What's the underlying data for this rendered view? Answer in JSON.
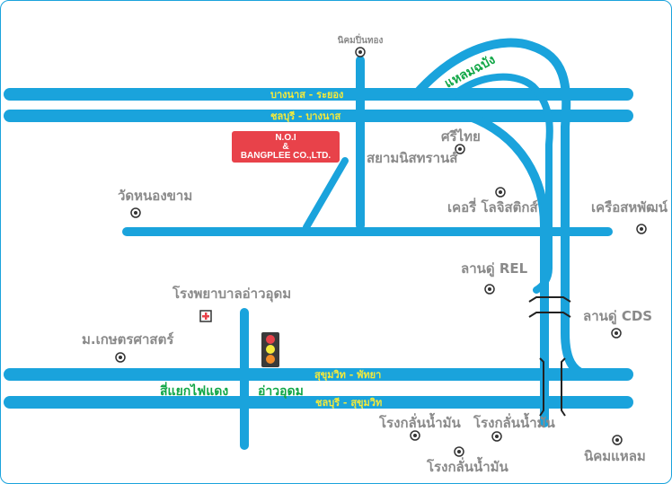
{
  "colors": {
    "road": "#1aa3dc",
    "road_label": "#f5ea3a",
    "place_label": "#8a8a8a",
    "green_label": "#10a646",
    "company_box": "#e8424a"
  },
  "roads": {
    "bangna_rayong": "บางนาส - ระยอง",
    "chonburi_bangna": "ชลบุรี - บางนาส",
    "sukhumvit_pattaya": "สุขุมวิท - พัทยา",
    "chonburi_sukhumvit": "ชลบุรี - สุขุมวิท"
  },
  "company": {
    "line1": "N.O.I",
    "line2": "&",
    "line3": "BANGPLEE CO.,LTD."
  },
  "places": {
    "nikhom_bonthong": "นิคมปิ่นทอง",
    "laem_chabang": "แหลมฉบัง",
    "srithai": "ศรีไทย",
    "siam_nistran": "สยามนิสทรานส์",
    "wat_nong_kham": "วัดหนองขาม",
    "kerry_logistics": "เคอรี่ โลจิสติกส์",
    "khrueasahaphat": "เครือสหพัฒน์",
    "landu_rel": "ลานดู่ REL",
    "hospital_ao_udom": "โรงพยาบาลอ่าวอุดม",
    "landu_cds": "ลานดู่ CDS",
    "mor_kasetsart": "ม.เกษตรศาสตร์",
    "si_yaek_fai_daeng": "สี่แยกไฟแดง",
    "ao_udom": "อ่าวอุดม",
    "refinery_1": "โรงกลั่นน้ำมัน",
    "refinery_2": "โรงกลั่นน้ำมัน",
    "refinery_3": "โรงกลั่นน้ำมัน",
    "nikhom_laem": "นิคมแหลม"
  },
  "icons": {
    "landmark": "landmark-dot-icon",
    "hospital": "hospital-cross-icon",
    "traffic_light": "traffic-light-icon",
    "bridge": "bridge-icon"
  }
}
